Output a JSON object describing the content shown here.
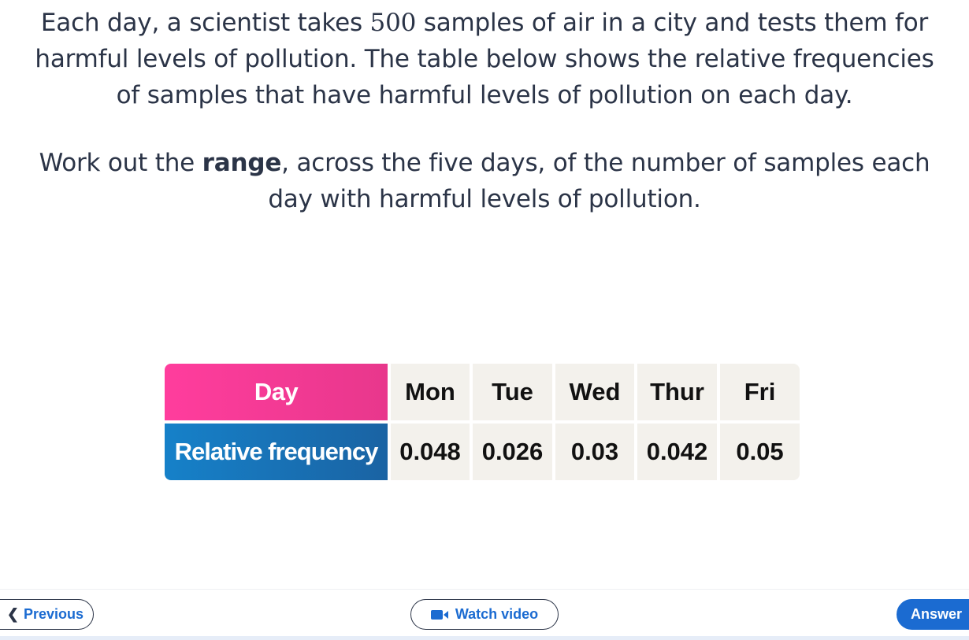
{
  "question": {
    "paragraph1_before": "Each day, a scientist takes ",
    "sample_count": "500",
    "paragraph1_after": " samples of air in a city and tests them for harmful levels of pollution. The table below shows the relative frequencies of samples that have harmful levels of pollution on each day.",
    "paragraph2_before": "Work out the ",
    "paragraph2_bold": "range",
    "paragraph2_after": ", across the five days, of the number of samples each day with harmful levels of pollution."
  },
  "table": {
    "row1_header": "Day",
    "row2_header": "Relative frequency",
    "days": [
      "Mon",
      "Tue",
      "Wed",
      "Thur",
      "Fri"
    ],
    "values": [
      "0.048",
      "0.026",
      "0.03",
      "0.042",
      "0.05"
    ]
  },
  "nav": {
    "previous_label": "Previous",
    "previous_icon": "chevron-left-icon",
    "watch_video_label": "Watch video",
    "watch_video_icon": "video-camera-icon",
    "answer_label": "Answer"
  },
  "colors": {
    "day_header": "#e8378c",
    "frequency_header": "#1a6fb3",
    "link_blue": "#1b6bd1",
    "cell_background": "#f3f1ec"
  }
}
